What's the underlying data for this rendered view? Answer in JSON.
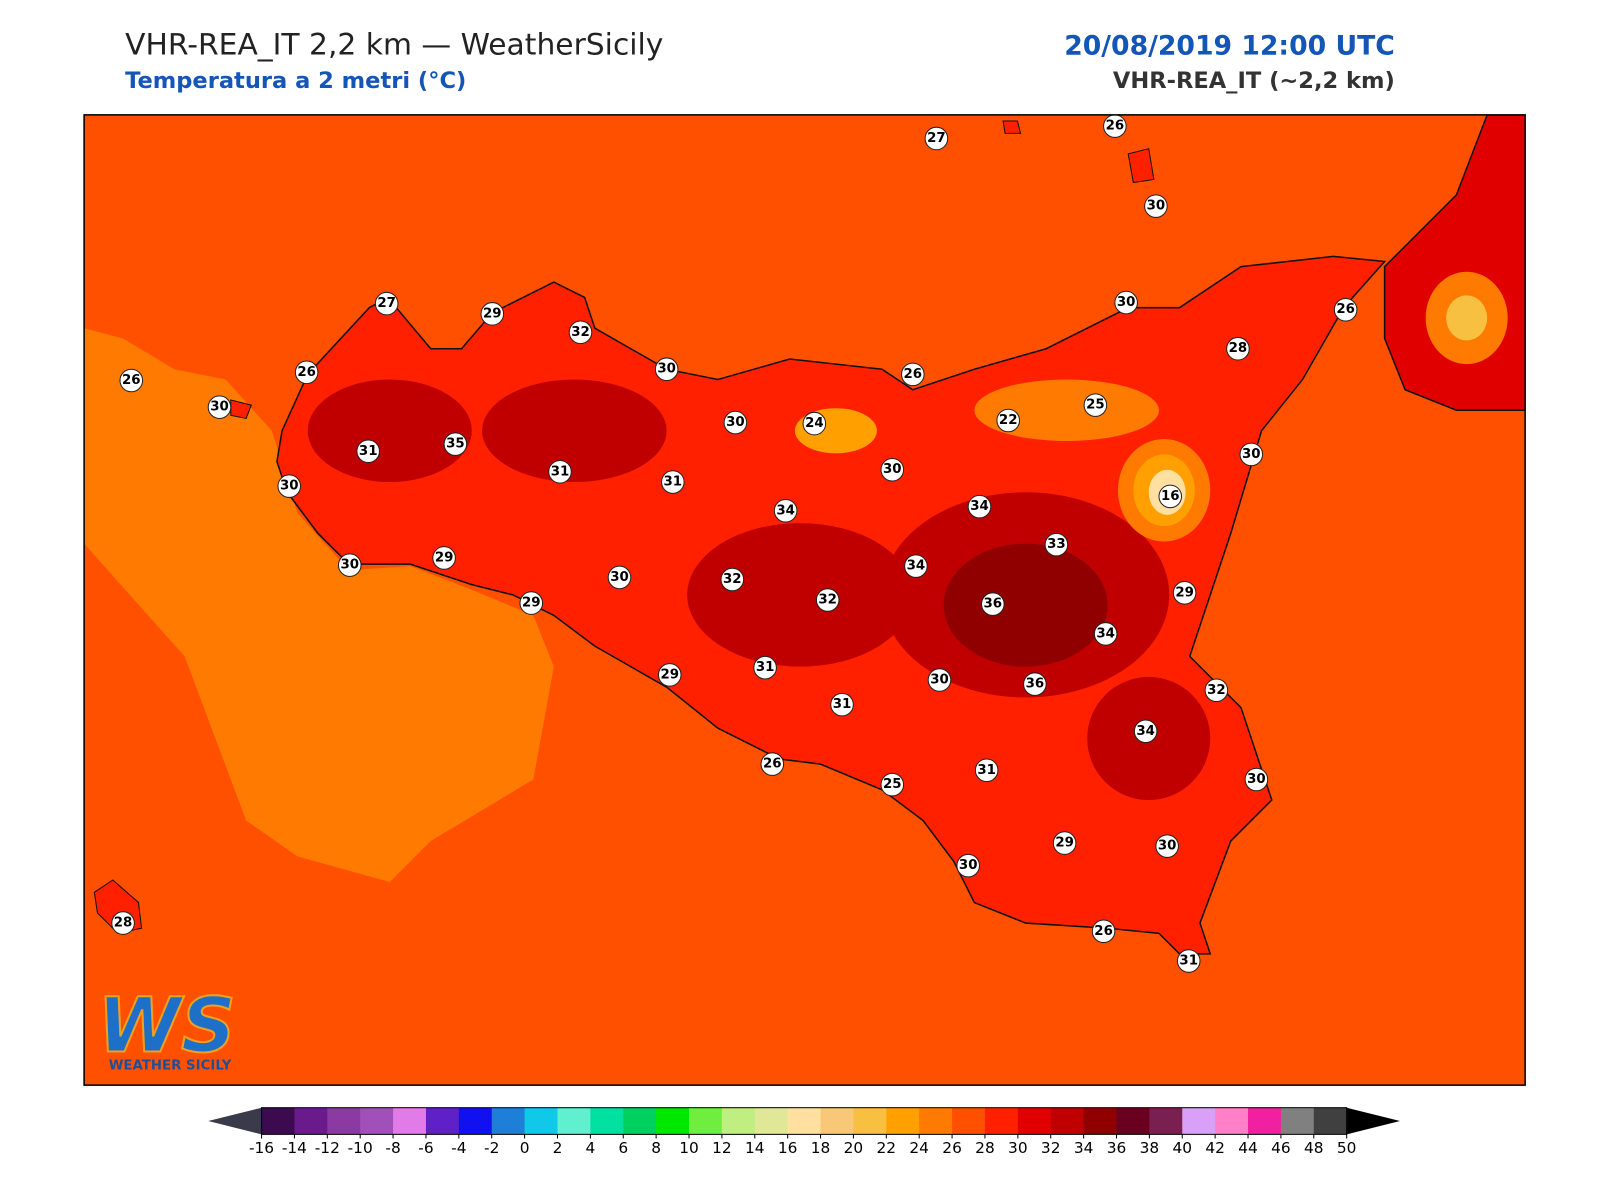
{
  "header": {
    "title": "VHR-REA_IT 2,2 km — WeatherSicily",
    "subtitle": "Temperatura a 2 metri (°C)",
    "datetime": "20/08/2019 12:00 UTC",
    "model": "VHR-REA_IT (~2,2 km)"
  },
  "map": {
    "sea_color": "#ff5000",
    "station_values": [
      27,
      26,
      30,
      27,
      29,
      32,
      26,
      26,
      30,
      30,
      30,
      26,
      28,
      26,
      30,
      24,
      22,
      25,
      31,
      35,
      30,
      31,
      31,
      30,
      30,
      16,
      34,
      34,
      33,
      30,
      29,
      30,
      32,
      34,
      32,
      36,
      29,
      29,
      34,
      29,
      31,
      30,
      36,
      32,
      31,
      34,
      26,
      25,
      31,
      30,
      29,
      30,
      30,
      26,
      31,
      28
    ]
  },
  "logo": {
    "mark": "WS",
    "text": "WEATHER SICILY"
  },
  "colorbar": {
    "ticks": [
      -16,
      -14,
      -12,
      -10,
      -8,
      -6,
      -4,
      -2,
      0,
      2,
      4,
      6,
      8,
      10,
      12,
      14,
      16,
      18,
      20,
      22,
      24,
      26,
      28,
      30,
      32,
      34,
      36,
      38,
      40,
      42,
      44,
      46,
      48,
      50
    ],
    "colors": [
      "#3b0a4f",
      "#6a1a8a",
      "#8a3aa0",
      "#a050b8",
      "#e07be8",
      "#6020c8",
      "#1010f0",
      "#1e7fd8",
      "#10c8e8",
      "#60f0d0",
      "#00e0a0",
      "#00d060",
      "#00e800",
      "#70ee40",
      "#c0ee80",
      "#e0e898",
      "#ffe0a0",
      "#f8c878",
      "#f8c040",
      "#ffa000",
      "#ff7a00",
      "#ff5000",
      "#ff2000",
      "#e00000",
      "#c00000",
      "#900000",
      "#6a0020",
      "#7a2050",
      "#d8a0f8",
      "#ff80c8",
      "#f020a0",
      "#808080",
      "#404040"
    ],
    "under_color": "#3a3a4a",
    "over_color": "#000000"
  }
}
